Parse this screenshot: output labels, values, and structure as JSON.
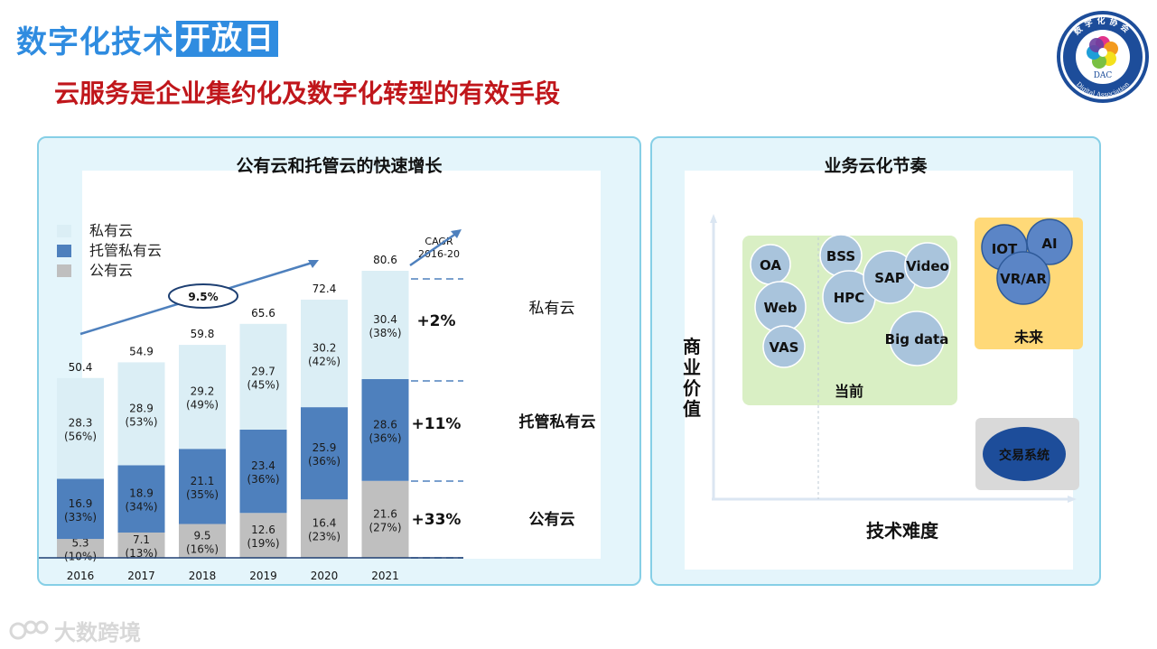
{
  "header": {
    "brand_part1": "数字化技术",
    "brand_part2": "开放日",
    "subtitle": "云服务是企业集约化及数字化转型的有效手段"
  },
  "logo": {
    "top_text": "数字化协会",
    "mid_text": "DAC",
    "bottom_text": "Digital Association",
    "icon": "flower-logo-icon"
  },
  "left_panel": {
    "title": "公有云和托管云的快速增长",
    "legend": [
      "私有云",
      "托管私有云",
      "公有云"
    ],
    "growth_label": "9.5%",
    "cagr_label_line1": "CAGR",
    "cagr_label_line2": "2016-20",
    "cagr_values": [
      "+2%",
      "+11%",
      "+33%"
    ],
    "segment_names": [
      "私有云",
      "托管私有云",
      "公有云"
    ]
  },
  "chart_data": {
    "type": "bar",
    "categories": [
      "2016",
      "2017",
      "2018",
      "2019",
      "2020",
      "2021"
    ],
    "totals": [
      50.4,
      54.9,
      59.8,
      65.6,
      72.4,
      80.6
    ],
    "series": [
      {
        "name": "公有云",
        "values": [
          5.3,
          7.1,
          9.5,
          12.6,
          16.4,
          21.6
        ],
        "shares": [
          "(10%)",
          "(13%)",
          "(16%)",
          "(19%)",
          "(23%)",
          "(27%)"
        ],
        "color": "#bfbfbf"
      },
      {
        "name": "托管私有云",
        "values": [
          16.9,
          18.9,
          21.1,
          23.4,
          25.9,
          28.6
        ],
        "shares": [
          "(33%)",
          "(34%)",
          "(35%)",
          "(36%)",
          "(36%)",
          "(36%)"
        ],
        "color": "#4e80bd"
      },
      {
        "name": "私有云",
        "values": [
          28.3,
          28.9,
          29.2,
          29.7,
          30.2,
          30.4
        ],
        "shares": [
          "(56%)",
          "(53%)",
          "(49%)",
          "(45%)",
          "(42%)",
          "(38%)"
        ],
        "color": "#dbeef5"
      }
    ]
  },
  "right_panel": {
    "title": "业务云化节奏",
    "y_axis_label": "商业价值",
    "x_axis_label": "技术难度",
    "current_label": "当前",
    "future_label": "未来",
    "current_items": [
      "OA",
      "Web",
      "VAS",
      "BSS",
      "HPC",
      "SAP",
      "Video",
      "Big data"
    ],
    "future_items": [
      "IOT",
      "AI",
      "VR/AR"
    ],
    "transaction_label": "交易系统",
    "colors": {
      "current_box": "#d9efc4",
      "future_box": "#ffd978",
      "trans_box": "#d9d9d9",
      "bubble": "#a9c4dc",
      "future_bubble": "#5b85c6",
      "trans_bubble": "#1d4d9a"
    }
  },
  "watermark": {
    "text": "大数跨境"
  }
}
